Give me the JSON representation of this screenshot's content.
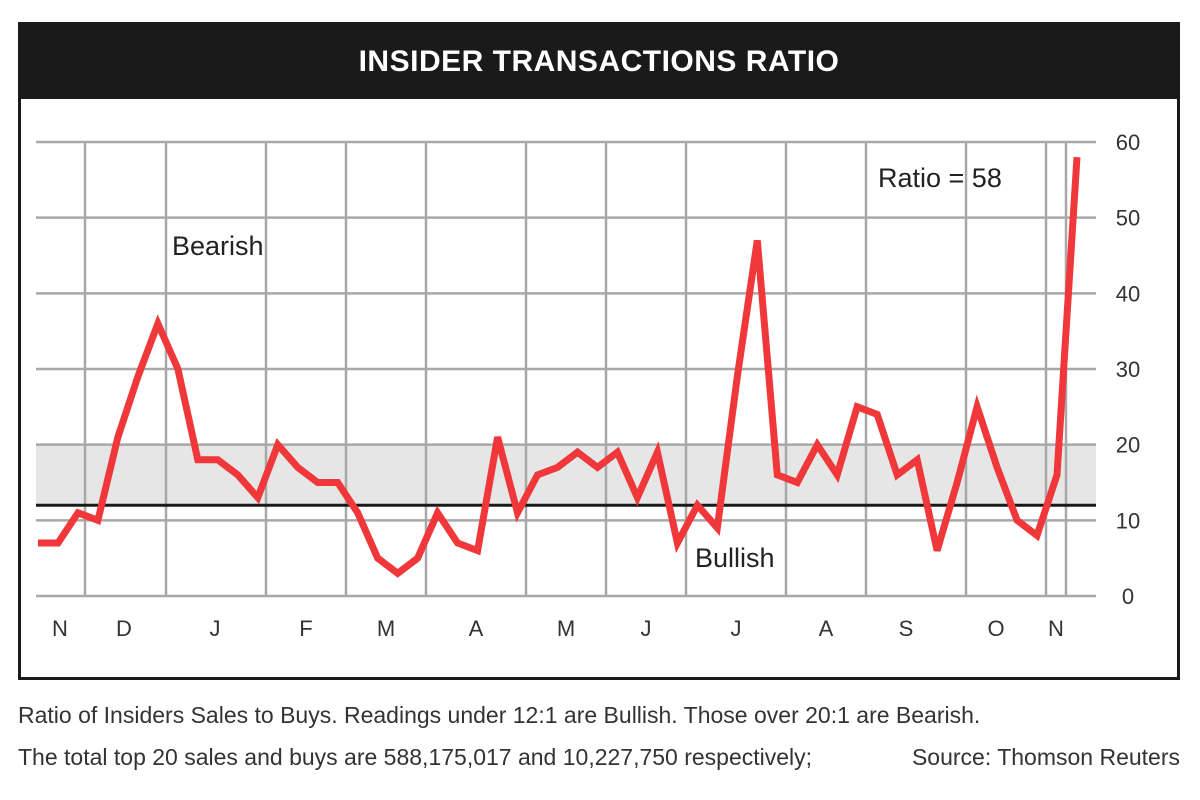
{
  "chart_data": {
    "type": "line",
    "title": "INSIDER TRANSACTIONS RATIO",
    "xlabel": "",
    "ylabel": "",
    "x_tick_labels": [
      "N",
      "D",
      "J",
      "F",
      "M",
      "A",
      "M",
      "J",
      "J",
      "A",
      "S",
      "O",
      "N"
    ],
    "y_ticks": [
      0,
      10,
      20,
      30,
      40,
      50,
      60
    ],
    "ylim": [
      0,
      60
    ],
    "grid": true,
    "bullish_threshold": 12,
    "bearish_threshold": 20,
    "annotations": {
      "bearish": "Bearish",
      "bullish": "Bullish",
      "ratio": "Ratio = 58"
    },
    "series": [
      {
        "name": "Ratio",
        "color": "#f0373a",
        "values": [
          7,
          7,
          11,
          10,
          21,
          29,
          36,
          30,
          18,
          18,
          16,
          13,
          20,
          17,
          15,
          15,
          11,
          5,
          3,
          5,
          11,
          7,
          6,
          21,
          11,
          16,
          17,
          19,
          17,
          19,
          13,
          19,
          7,
          12,
          9,
          29,
          47,
          16,
          15,
          20,
          16,
          25,
          24,
          16,
          18,
          6,
          15,
          25,
          17,
          10,
          8,
          16,
          58
        ]
      }
    ]
  },
  "footnotes": {
    "line1": "Ratio of Insiders Sales to Buys. Readings under 12:1 are Bullish. Those over 20:1 are Bearish.",
    "line2": "The total top 20 sales and buys are 588,175,017 and 10,227,750 respectively;",
    "source": "Source: Thomson Reuters"
  },
  "colors": {
    "line": "#f0373a",
    "band": "#e6e6e6",
    "grid": "#a8a8a8",
    "header": "#1a1a1a"
  }
}
